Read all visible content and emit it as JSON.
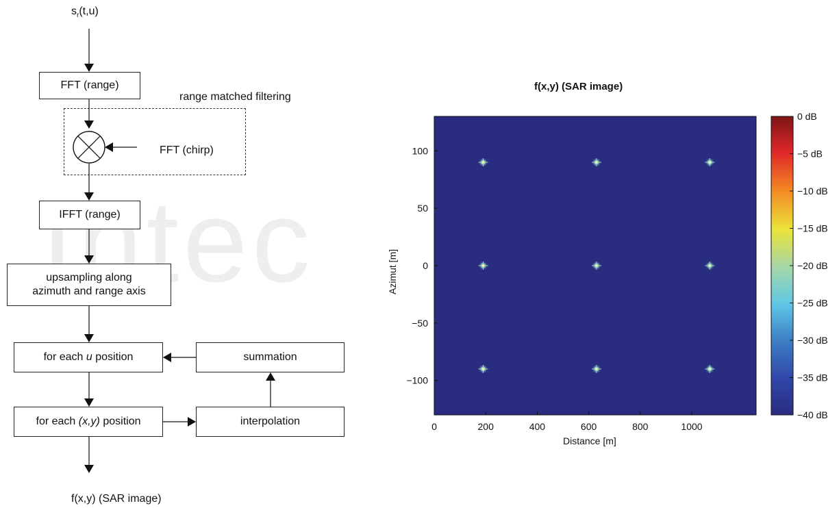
{
  "flow": {
    "input_label": "s",
    "input_sub": "r",
    "input_args": "(t,u)",
    "fft_range": "FFT (range)",
    "matched_filter_label": "range matched filtering",
    "fft_chirp": "FFT (chirp)",
    "ifft_range": "IFFT (range)",
    "upsampling_line1": "upsampling along",
    "upsampling_line2": "azimuth and range axis",
    "for_each_u_pre": "for each ",
    "for_each_u_var": "u",
    "for_each_u_post": " position",
    "summation": "summation",
    "for_each_xy_pre": "for each ",
    "for_each_xy_var": "(x,y)",
    "for_each_xy_post": " position",
    "interpolation": "interpolation",
    "output_label": "f(x,y) (SAR image)"
  },
  "watermark": "Intec",
  "chart_data": {
    "type": "heatmap",
    "title": "f(x,y) (SAR image)",
    "xlabel": "Distance [m]",
    "ylabel": "Azimut [m]",
    "xlim": [
      0,
      1250
    ],
    "ylim": [
      -130,
      130
    ],
    "xticks": [
      0,
      200,
      400,
      600,
      800,
      1000
    ],
    "yticks": [
      100,
      50,
      0,
      -50,
      -100
    ],
    "background_color": "#2a2c80",
    "points": [
      {
        "x": 190,
        "y": 90
      },
      {
        "x": 630,
        "y": 90
      },
      {
        "x": 1070,
        "y": 90
      },
      {
        "x": 190,
        "y": 0
      },
      {
        "x": 630,
        "y": 0
      },
      {
        "x": 1070,
        "y": 0
      },
      {
        "x": 190,
        "y": -90
      },
      {
        "x": 630,
        "y": -90
      },
      {
        "x": 1070,
        "y": -90
      }
    ],
    "colorbar": {
      "labels": [
        "0 dB",
        "−5 dB",
        "−10 dB",
        "−15 dB",
        "−20 dB",
        "−25 dB",
        "−30 dB",
        "−35 dB",
        "−40 dB"
      ],
      "range_db": [
        -40,
        0
      ]
    }
  }
}
